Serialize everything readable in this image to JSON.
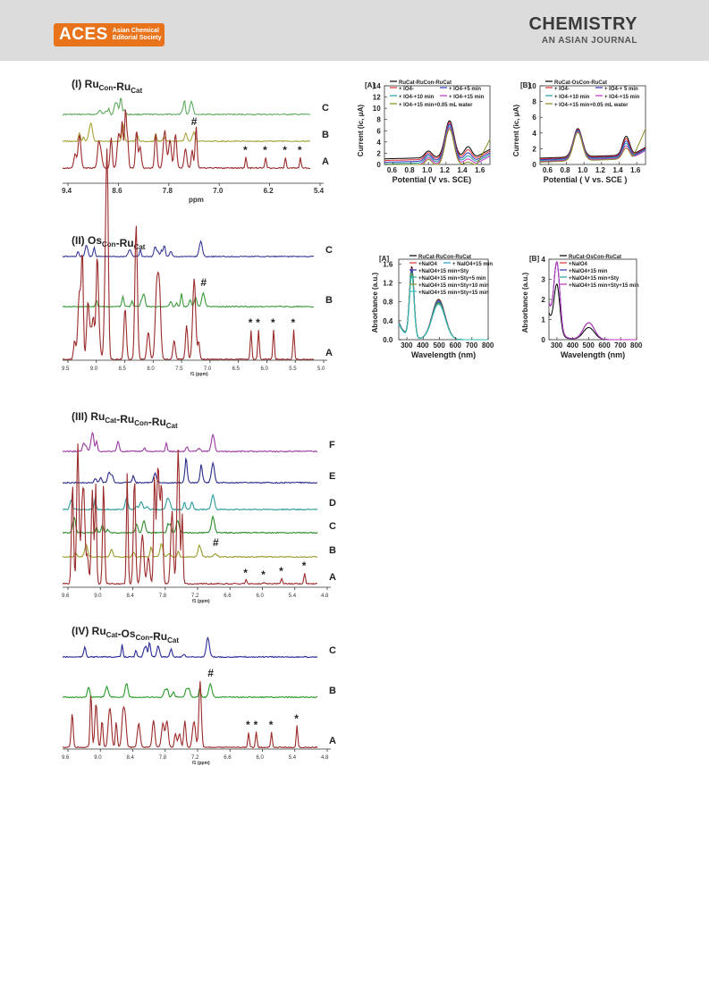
{
  "header": {
    "logo_word": "ACES",
    "logo_line1": "Asian Chemical",
    "logo_line2": "Editorial Society",
    "journal_line1": "CHEMISTRY",
    "journal_line2": "AN ASIAN JOURNAL"
  },
  "nmr_panels": [
    {
      "title": "(I) RuCon-RuCat",
      "traces": [
        "C",
        "B",
        "A"
      ],
      "hash": "#",
      "star": "*",
      "xlabel": "ppm",
      "ticks": [
        "9.4",
        "8.6",
        "7.8",
        "7.0",
        "6.2",
        "5.4"
      ]
    },
    {
      "title": "(II) OsCon-RuCat",
      "traces": [
        "C",
        "B",
        "A"
      ],
      "hash": "#",
      "star": "*",
      "xlabel": "f1 (ppm)",
      "ticks": [
        "9.5",
        "9.0",
        "8.5",
        "8.0",
        "7.5",
        "7.0",
        "6.5",
        "6.0",
        "5.5",
        "5.0"
      ]
    },
    {
      "title": "(III) RuCat-RuCon-RuCat",
      "traces": [
        "F",
        "E",
        "D",
        "C",
        "B",
        "A"
      ],
      "hash": "#",
      "star": "*",
      "xlabel": "f1 (ppm)",
      "ticks": [
        "9.6",
        "9.0",
        "8.4",
        "7.8",
        "7.2",
        "6.6",
        "6.0",
        "5.4",
        "4.8"
      ]
    },
    {
      "title": "(IV) RuCat-OsCon-RuCat",
      "traces": [
        "C",
        "B",
        "A"
      ],
      "hash": "#",
      "star": "*",
      "xlabel": "f1 (ppm)",
      "ticks": [
        "9.6",
        "9.0",
        "8.4",
        "7.8",
        "7.2",
        "6.6",
        "6.0",
        "5.4",
        "4.8"
      ]
    }
  ],
  "chart_data": [
    {
      "type": "line",
      "label": "[A]",
      "xlabel": "Potential (V vs. SCE)",
      "ylabel": "Current (ic, μA)",
      "xlim": [
        0.5,
        1.7
      ],
      "ylim": [
        0,
        14
      ],
      "xticks": [
        "0.6",
        "0.8",
        "1.0",
        "1.2",
        "1.4",
        "1.6"
      ],
      "yticks": [
        "0",
        "2",
        "4",
        "6",
        "8",
        "10",
        "12",
        "14"
      ],
      "legend": [
        "RuCat-RuCon-RuCat",
        "+ IO4-",
        "+ IO4-+5 min",
        "+ IO4-+10 min",
        "+ IO4-+15 min",
        "+ IO4-+15 min+0.05 mL water"
      ],
      "colors": [
        "#000000",
        "#e03030",
        "#3030c0",
        "#20a0a0",
        "#c030c0",
        "#8a8a20"
      ]
    },
    {
      "type": "line",
      "label": "[B]",
      "xlabel": "Potential ( V vs. SCE )",
      "ylabel": "Current (ic, μA)",
      "xlim": [
        0.5,
        1.7
      ],
      "ylim": [
        0,
        10
      ],
      "xticks": [
        "0.6",
        "0.8",
        "1.0",
        "1.2",
        "1.4",
        "1.6"
      ],
      "yticks": [
        "0",
        "2",
        "4",
        "6",
        "8",
        "10"
      ],
      "legend": [
        "RuCat-OsCon-RuCat",
        "+ IO4-",
        "+ IO4-+ 5 min",
        "+ IO4-+10 min",
        "+ IO4-+15 min",
        "+ IO4-+15 min+0.05 mL water"
      ],
      "colors": [
        "#000000",
        "#e03030",
        "#3030c0",
        "#20a0a0",
        "#c030c0",
        "#8a8a20"
      ]
    },
    {
      "type": "line",
      "label": "[A]",
      "xlabel": "Wavelength (nm)",
      "ylabel": "Absorbance (a.u.)",
      "xlim": [
        250,
        800
      ],
      "ylim": [
        0,
        1.7
      ],
      "xticks": [
        "300",
        "400",
        "500",
        "600",
        "700",
        "800"
      ],
      "yticks": [
        "0.0",
        "0.4",
        "0.8",
        "1.2",
        "1.6"
      ],
      "legend": [
        "RuCat-RuCon-RuCat",
        "+NaIO4",
        "+ NaIO4+15 min",
        "+NaIO4+15 min+Sty",
        "+NaIO4+15 min+Sty+5 min",
        "+NaIO4+15 min+Sty+10 min",
        "+NaIO4+15 min+Sty+15 min"
      ],
      "colors": [
        "#000000",
        "#e03030",
        "#20a0c0",
        "#3030c0",
        "#20b080",
        "#8a8a20",
        "#30c0c0"
      ]
    },
    {
      "type": "line",
      "label": "[B]",
      "xlabel": "Wavelength (nm)",
      "ylabel": "Absorbance (a.u.)",
      "xlim": [
        250,
        800
      ],
      "ylim": [
        0,
        4
      ],
      "xticks": [
        "300",
        "400",
        "500",
        "600",
        "700",
        "800"
      ],
      "yticks": [
        "0",
        "1",
        "2",
        "3",
        "4"
      ],
      "legend": [
        "RuCat-OsCon-RuCat",
        "+NaIO4",
        "+NaIO4+15 min",
        "+NaIO4+15 min+Sty",
        "+NaIO4+15 min+Sty+15 min"
      ],
      "colors": [
        "#000000",
        "#e03030",
        "#3030c0",
        "#20a0a0",
        "#c030c0"
      ]
    }
  ]
}
